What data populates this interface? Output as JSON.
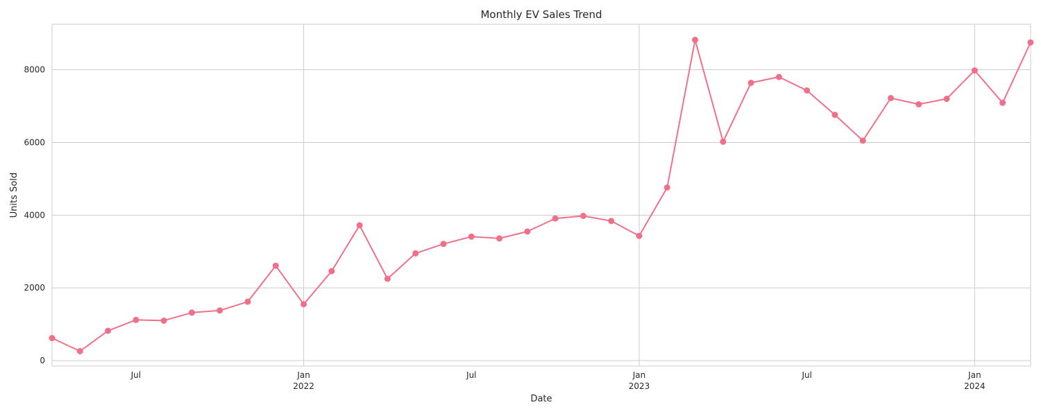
{
  "chart_data": {
    "type": "line",
    "title": "Monthly EV Sales Trend",
    "xlabel": "Date",
    "ylabel": "Units Sold",
    "x_range": [
      "2021-04",
      "2024-03"
    ],
    "ylim": [
      -150,
      9250
    ],
    "grid": true,
    "color": "#f0708a",
    "x_ticks": [
      {
        "date": "2021-07",
        "label": "Jul",
        "sublabel": ""
      },
      {
        "date": "2022-01",
        "label": "Jan",
        "sublabel": "2022"
      },
      {
        "date": "2022-07",
        "label": "Jul",
        "sublabel": ""
      },
      {
        "date": "2023-01",
        "label": "Jan",
        "sublabel": "2023"
      },
      {
        "date": "2023-07",
        "label": "Jul",
        "sublabel": ""
      },
      {
        "date": "2024-01",
        "label": "Jan",
        "sublabel": "2024"
      }
    ],
    "y_ticks": [
      0,
      2000,
      4000,
      6000,
      8000
    ],
    "points": [
      {
        "x": "2021-04",
        "y": 620
      },
      {
        "x": "2021-05",
        "y": 260
      },
      {
        "x": "2021-06",
        "y": 820
      },
      {
        "x": "2021-07",
        "y": 1120
      },
      {
        "x": "2021-08",
        "y": 1100
      },
      {
        "x": "2021-09",
        "y": 1320
      },
      {
        "x": "2021-10",
        "y": 1380
      },
      {
        "x": "2021-11",
        "y": 1620
      },
      {
        "x": "2021-12",
        "y": 2610
      },
      {
        "x": "2022-01",
        "y": 1550
      },
      {
        "x": "2022-02",
        "y": 2460
      },
      {
        "x": "2022-03",
        "y": 3720
      },
      {
        "x": "2022-04",
        "y": 2250
      },
      {
        "x": "2022-05",
        "y": 2950
      },
      {
        "x": "2022-06",
        "y": 3210
      },
      {
        "x": "2022-07",
        "y": 3410
      },
      {
        "x": "2022-08",
        "y": 3360
      },
      {
        "x": "2022-09",
        "y": 3550
      },
      {
        "x": "2022-10",
        "y": 3910
      },
      {
        "x": "2022-11",
        "y": 3980
      },
      {
        "x": "2022-12",
        "y": 3840
      },
      {
        "x": "2023-01",
        "y": 3430
      },
      {
        "x": "2023-02",
        "y": 4760
      },
      {
        "x": "2023-03",
        "y": 8820
      },
      {
        "x": "2023-04",
        "y": 6020
      },
      {
        "x": "2023-05",
        "y": 7640
      },
      {
        "x": "2023-06",
        "y": 7800
      },
      {
        "x": "2023-07",
        "y": 7430
      },
      {
        "x": "2023-08",
        "y": 6760
      },
      {
        "x": "2023-09",
        "y": 6050
      },
      {
        "x": "2023-10",
        "y": 7220
      },
      {
        "x": "2023-11",
        "y": 7050
      },
      {
        "x": "2023-12",
        "y": 7200
      },
      {
        "x": "2024-01",
        "y": 7980
      },
      {
        "x": "2024-02",
        "y": 7090
      },
      {
        "x": "2024-03",
        "y": 8750
      }
    ]
  }
}
